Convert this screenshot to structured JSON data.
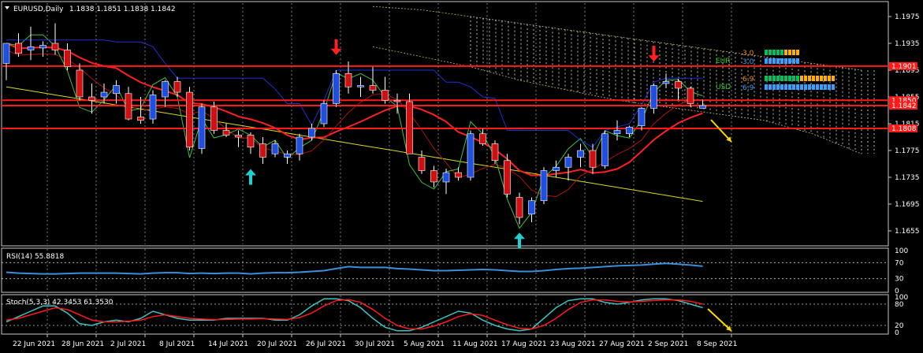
{
  "header": {
    "title": "EURUSD,Daily",
    "ohlc": "1.1838 1.1851 1.1838 1.1842"
  },
  "chart_data": [
    {
      "type": "candlestick",
      "title": "EURUSD,Daily",
      "ohlc_readout": "1.1838 1.1851 1.1838 1.1842",
      "ylim": [
        1.1635,
        1.1995
      ],
      "y_ticks": [
        "1.1975",
        "1.1935",
        "1.1895",
        "1.1855",
        "1.1815",
        "1.1775",
        "1.1735",
        "1.1695",
        "1.1655"
      ],
      "price_tags": [
        {
          "label": "1.1901",
          "value": 1.1901
        },
        {
          "label": "1.1850",
          "value": 1.185
        },
        {
          "label": "1.1842",
          "value": 1.1842
        },
        {
          "label": "1.1808",
          "value": 1.1808
        }
      ],
      "x_labels": [
        "22 Jun 2021",
        "28 Jun 2021",
        "2 Jul 2021",
        "8 Jul 2021",
        "14 Jul 2021",
        "20 Jul 2021",
        "26 Jul 2021",
        "30 Jul 2021",
        "5 Aug 2021",
        "11 Aug 2021",
        "17 Aug 2021",
        "23 Aug 2021",
        "27 Aug 2021",
        "2 Sep 2021",
        "8 Sep 2021"
      ],
      "candles": [
        [
          1.1905,
          1.1935,
          1.188,
          1.1935
        ],
        [
          1.1935,
          1.195,
          1.1915,
          1.192
        ],
        [
          1.1925,
          1.196,
          1.191,
          1.193
        ],
        [
          1.1928,
          1.1938,
          1.1915,
          1.1932
        ],
        [
          1.1935,
          1.1965,
          1.1918,
          1.1925
        ],
        [
          1.1925,
          1.1935,
          1.1895,
          1.19
        ],
        [
          1.1895,
          1.1905,
          1.185,
          1.1855
        ],
        [
          1.1855,
          1.1875,
          1.183,
          1.185
        ],
        [
          1.1855,
          1.1875,
          1.1845,
          1.1862
        ],
        [
          1.186,
          1.188,
          1.1845,
          1.1872
        ],
        [
          1.186,
          1.187,
          1.182,
          1.1822
        ],
        [
          1.1825,
          1.1855,
          1.1815,
          1.182
        ],
        [
          1.1822,
          1.1865,
          1.1815,
          1.1858
        ],
        [
          1.1855,
          1.188,
          1.184,
          1.1878
        ],
        [
          1.1878,
          1.1885,
          1.1855,
          1.1862
        ],
        [
          1.1862,
          1.187,
          1.1775,
          1.178
        ],
        [
          1.1778,
          1.1845,
          1.177,
          1.184
        ],
        [
          1.184,
          1.1848,
          1.18,
          1.1805
        ],
        [
          1.1805,
          1.1815,
          1.1795,
          1.1798
        ],
        [
          1.1798,
          1.1805,
          1.178,
          1.1795
        ],
        [
          1.1798,
          1.1802,
          1.177,
          1.178
        ],
        [
          1.1785,
          1.1795,
          1.1755,
          1.1765
        ],
        [
          1.177,
          1.179,
          1.1765,
          1.1785
        ],
        [
          1.1765,
          1.1775,
          1.1755,
          1.177
        ],
        [
          1.177,
          1.18,
          1.176,
          1.1795
        ],
        [
          1.1795,
          1.1815,
          1.179,
          1.1808
        ],
        [
          1.1815,
          1.185,
          1.181,
          1.1845
        ],
        [
          1.1845,
          1.1895,
          1.184,
          1.189
        ],
        [
          1.189,
          1.1908,
          1.186,
          1.187
        ],
        [
          1.187,
          1.1885,
          1.1855,
          1.1872
        ],
        [
          1.1872,
          1.19,
          1.186,
          1.1865
        ],
        [
          1.1865,
          1.1885,
          1.1845,
          1.185
        ],
        [
          1.185,
          1.186,
          1.183,
          1.1848
        ],
        [
          1.1848,
          1.186,
          1.177,
          1.177
        ],
        [
          1.1765,
          1.1775,
          1.174,
          1.1745
        ],
        [
          1.1745,
          1.1752,
          1.172,
          1.1728
        ],
        [
          1.1728,
          1.1748,
          1.171,
          1.1742
        ],
        [
          1.1742,
          1.175,
          1.173,
          1.1735
        ],
        [
          1.1735,
          1.1805,
          1.173,
          1.18
        ],
        [
          1.18,
          1.1808,
          1.1782,
          1.1785
        ],
        [
          1.1785,
          1.179,
          1.1755,
          1.176
        ],
        [
          1.176,
          1.177,
          1.1705,
          1.171
        ],
        [
          1.1705,
          1.1712,
          1.1665,
          1.1675
        ],
        [
          1.168,
          1.1705,
          1.1668,
          1.17
        ],
        [
          1.17,
          1.175,
          1.1695,
          1.1745
        ],
        [
          1.1745,
          1.176,
          1.1735,
          1.175
        ],
        [
          1.175,
          1.177,
          1.173,
          1.1765
        ],
        [
          1.1765,
          1.1785,
          1.175,
          1.1775
        ],
        [
          1.1775,
          1.1785,
          1.174,
          1.175
        ],
        [
          1.1752,
          1.1805,
          1.1748,
          1.18
        ],
        [
          1.18,
          1.182,
          1.179,
          1.1805
        ],
        [
          1.18,
          1.1812,
          1.1795,
          1.181
        ],
        [
          1.1812,
          1.184,
          1.1805,
          1.1838
        ],
        [
          1.1838,
          1.1875,
          1.183,
          1.1872
        ],
        [
          1.1875,
          1.189,
          1.1868,
          1.1878
        ],
        [
          1.1878,
          1.1882,
          1.185,
          1.1868
        ],
        [
          1.1868,
          1.187,
          1.184,
          1.1845
        ],
        [
          1.1838,
          1.1851,
          1.1838,
          1.1842
        ]
      ],
      "horizontal_levels": [
        1.1901,
        1.185,
        1.1842,
        1.1808
      ],
      "arrow_markers": [
        {
          "type": "down",
          "color": "#ff2020",
          "bar": 27,
          "price": 1.192
        },
        {
          "type": "down",
          "color": "#ff2020",
          "bar": 53,
          "price": 1.191
        },
        {
          "type": "up",
          "color": "#20d0d0",
          "bar": 20,
          "price": 1.1745
        },
        {
          "type": "up",
          "color": "#20d0d0",
          "bar": 42,
          "price": 1.165
        }
      ],
      "strength_panel": [
        {
          "label": "EUR",
          "color": "#22cc22",
          "values": [
            {
              "text": "3.0",
              "color": "#ff8c00"
            },
            {
              "text": "3.0",
              "color": "#3aa0ff"
            }
          ]
        },
        {
          "label": "USD",
          "color": "#22cc22",
          "values": [
            {
              "text": "6.9",
              "color": "#ff8c00"
            },
            {
              "text": "6.9",
              "color": "#3aa0ff"
            }
          ]
        }
      ],
      "colors": {
        "bull": "#1f4fe0",
        "bear": "#d01010",
        "wick": "#ffffff",
        "level": "#ff1a1a",
        "ma_red": "#ff2020",
        "ma_green": "#40c040",
        "ma_yellow": "#d8d820",
        "blue_line": "#2030d0",
        "cloud": "#c8b070",
        "projection": "#ffd800"
      }
    },
    {
      "type": "line",
      "title": "RSI(14) 55.8818",
      "ylim": [
        0,
        100
      ],
      "y_ticks": [
        "100",
        "70",
        "30",
        "0"
      ],
      "levels": [
        70,
        30
      ],
      "series": [
        {
          "name": "RSI(14)",
          "color": "#3a8fd8",
          "values": [
            46,
            44,
            43,
            42,
            42,
            43,
            44,
            44,
            44,
            44,
            43,
            42,
            44,
            45,
            45,
            43,
            44,
            43,
            44,
            44,
            42,
            44,
            45,
            45,
            46,
            48,
            50,
            55,
            60,
            58,
            58,
            58,
            55,
            54,
            52,
            50,
            50,
            51,
            52,
            53,
            52,
            50,
            48,
            48,
            50,
            53,
            55,
            56,
            58,
            60,
            62,
            63,
            64,
            66,
            68,
            66,
            64,
            61,
            60,
            56
          ]
        }
      ]
    },
    {
      "type": "line",
      "title": "Stoch(5,3,3) 42.3453 61.3530",
      "ylim": [
        0,
        100
      ],
      "y_ticks": [
        "100",
        "80",
        "20",
        "0"
      ],
      "levels": [
        80,
        20
      ],
      "series": [
        {
          "name": "Stoch %K",
          "color": "#40c0c0",
          "values": [
            30,
            45,
            60,
            75,
            75,
            55,
            25,
            20,
            30,
            35,
            30,
            40,
            60,
            50,
            40,
            35,
            35,
            35,
            40,
            40,
            40,
            40,
            35,
            35,
            50,
            75,
            95,
            95,
            90,
            70,
            40,
            15,
            5,
            5,
            15,
            30,
            45,
            60,
            55,
            35,
            20,
            10,
            5,
            10,
            40,
            70,
            90,
            95,
            95,
            85,
            80,
            85,
            92,
            95,
            95,
            90,
            80,
            70,
            55,
            42
          ]
        },
        {
          "name": "Stoch %D",
          "color": "#ff1a1a",
          "values": [
            35,
            40,
            50,
            60,
            70,
            65,
            50,
            35,
            30,
            30,
            32,
            35,
            45,
            50,
            45,
            40,
            38,
            36,
            37,
            38,
            38,
            39,
            38,
            37,
            42,
            55,
            75,
            90,
            93,
            85,
            65,
            40,
            20,
            10,
            10,
            18,
            30,
            45,
            53,
            48,
            35,
            22,
            12,
            10,
            20,
            40,
            65,
            85,
            92,
            92,
            88,
            86,
            88,
            90,
            92,
            92,
            88,
            80,
            70,
            61
          ]
        }
      ]
    }
  ]
}
